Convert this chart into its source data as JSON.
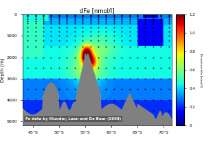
{
  "title": "dFe [nmol/l]",
  "xlabel_ticks": [
    "45°S",
    "50°S",
    "55°S",
    "60°S",
    "65°S",
    "70°S"
  ],
  "xlabel_tick_pos": [
    45,
    50,
    55,
    60,
    65,
    70
  ],
  "ylabel": "Depth (m)",
  "ylabel_ticks": [
    0,
    1000,
    2000,
    3000,
    4000,
    5000
  ],
  "lon_range": [
    43,
    71.5
  ],
  "depth_range": [
    0,
    5200
  ],
  "colorbar_label": "Dissolved dFe [nmol/l]",
  "vmin": 0.0,
  "vmax": 1.2,
  "annotation": "Fe data by Klunder, Laan and De Baar (2008)",
  "background_color": "#ffffff",
  "axes_bg_color": "#ffffff",
  "colorbar_ticks": [
    0,
    0.2,
    0.4,
    0.6,
    0.8,
    1.0,
    1.2
  ],
  "bathymetry_color": "#808080",
  "title_color": "#000000",
  "tick_color": "#000000"
}
